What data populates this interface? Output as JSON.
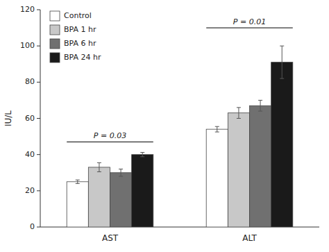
{
  "chart_data": {
    "type": "bar",
    "categories": [
      "AST",
      "ALT"
    ],
    "series": [
      {
        "name": "Control",
        "color": "#ffffff",
        "values": [
          25,
          54
        ],
        "errors": [
          1.0,
          1.5
        ]
      },
      {
        "name": "BPA 1 hr",
        "color": "#c8c8c8",
        "values": [
          33,
          63
        ],
        "errors": [
          2.5,
          3.0
        ]
      },
      {
        "name": "BPA 6 hr",
        "color": "#707070",
        "values": [
          30,
          67
        ],
        "errors": [
          2.0,
          3.0
        ]
      },
      {
        "name": "BPA 24 hr",
        "color": "#1a1a1a",
        "values": [
          40,
          91
        ],
        "errors": [
          1.2,
          9.0
        ]
      }
    ],
    "ylabel": "IU/L",
    "ylim": [
      0,
      120
    ],
    "yticks": [
      0,
      20,
      40,
      60,
      80,
      100,
      120
    ],
    "annotations": [
      {
        "text": "P = 0.03",
        "y": 47,
        "category": "AST"
      },
      {
        "text": "P = 0.01",
        "y": 110,
        "category": "ALT"
      }
    ],
    "legend": "upper left",
    "grid": false
  }
}
